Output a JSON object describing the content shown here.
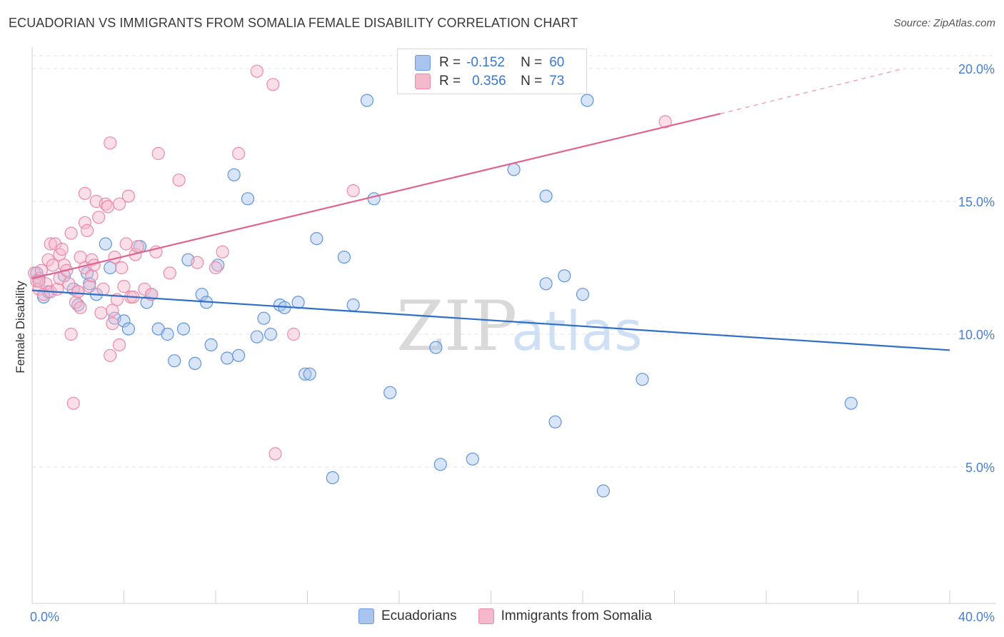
{
  "header": {
    "title": "ECUADORIAN VS IMMIGRANTS FROM SOMALIA FEMALE DISABILITY CORRELATION CHART",
    "source": "Source: ZipAtlas.com"
  },
  "watermark": {
    "zip": "ZIP",
    "atlas": "atlas"
  },
  "legend": {
    "r_label": "R =",
    "n_label": "N =",
    "series": [
      {
        "r": "-0.152",
        "n": "60",
        "color": "#a9c4ee"
      },
      {
        "r": "0.356",
        "n": "73",
        "color": "#f6b8cb"
      }
    ]
  },
  "bottom_legend": [
    {
      "label": "Ecuadorians",
      "color": "#a9c4ee"
    },
    {
      "label": "Immigrants from Somalia",
      "color": "#f6b8cb"
    }
  ],
  "chart_data": {
    "type": "scatter",
    "title": "ECUADORIAN VS IMMIGRANTS FROM SOMALIA FEMALE DISABILITY CORRELATION CHART",
    "xlabel": "",
    "ylabel": "Female Disability",
    "xlim": [
      0,
      40
    ],
    "ylim": [
      0,
      20.5
    ],
    "x_tick_labels": [
      {
        "value": 0,
        "label": "0.0%"
      },
      {
        "value": 40,
        "label": "40.0%"
      }
    ],
    "y_tick_labels": [
      {
        "value": 5,
        "label": "5.0%"
      },
      {
        "value": 10,
        "label": "10.0%"
      },
      {
        "value": 15,
        "label": "15.0%"
      },
      {
        "value": 20,
        "label": "20.0%"
      }
    ],
    "grid": true,
    "series": [
      {
        "name": "Ecuadorians",
        "stroke": "#5f95dc",
        "fill": "#a9c4ee",
        "trend": {
          "x": [
            0,
            40
          ],
          "y": [
            11.65,
            9.4
          ],
          "color": "#2f6fc7"
        },
        "points": [
          {
            "x": 0.3,
            "y": 12.1
          },
          {
            "x": 0.5,
            "y": 11.4
          },
          {
            "x": 0.7,
            "y": 11.6
          },
          {
            "x": 1.4,
            "y": 12.2
          },
          {
            "x": 1.8,
            "y": 11.7
          },
          {
            "x": 2.0,
            "y": 11.1
          },
          {
            "x": 2.4,
            "y": 12.3
          },
          {
            "x": 2.5,
            "y": 11.9
          },
          {
            "x": 2.8,
            "y": 11.5
          },
          {
            "x": 3.2,
            "y": 13.4
          },
          {
            "x": 3.4,
            "y": 12.5
          },
          {
            "x": 3.6,
            "y": 10.6
          },
          {
            "x": 4.0,
            "y": 10.5
          },
          {
            "x": 4.2,
            "y": 10.2
          },
          {
            "x": 4.7,
            "y": 13.3
          },
          {
            "x": 5.0,
            "y": 11.2
          },
          {
            "x": 5.2,
            "y": 11.5
          },
          {
            "x": 5.5,
            "y": 10.2
          },
          {
            "x": 5.9,
            "y": 10.0
          },
          {
            "x": 6.2,
            "y": 9.0
          },
          {
            "x": 6.6,
            "y": 10.2
          },
          {
            "x": 6.8,
            "y": 12.8
          },
          {
            "x": 7.1,
            "y": 8.9
          },
          {
            "x": 7.4,
            "y": 11.5
          },
          {
            "x": 7.6,
            "y": 11.2
          },
          {
            "x": 7.8,
            "y": 9.6
          },
          {
            "x": 8.1,
            "y": 12.6
          },
          {
            "x": 8.5,
            "y": 9.1
          },
          {
            "x": 8.8,
            "y": 16.0
          },
          {
            "x": 9.0,
            "y": 9.2
          },
          {
            "x": 9.4,
            "y": 15.1
          },
          {
            "x": 9.8,
            "y": 9.9
          },
          {
            "x": 10.1,
            "y": 10.6
          },
          {
            "x": 10.4,
            "y": 10.0
          },
          {
            "x": 10.8,
            "y": 11.1
          },
          {
            "x": 11.0,
            "y": 11.0
          },
          {
            "x": 11.6,
            "y": 11.2
          },
          {
            "x": 11.9,
            "y": 8.5
          },
          {
            "x": 12.1,
            "y": 8.5
          },
          {
            "x": 12.4,
            "y": 13.6
          },
          {
            "x": 13.1,
            "y": 4.6
          },
          {
            "x": 13.6,
            "y": 12.9
          },
          {
            "x": 14.0,
            "y": 11.1
          },
          {
            "x": 14.6,
            "y": 18.8
          },
          {
            "x": 14.9,
            "y": 15.1
          },
          {
            "x": 15.6,
            "y": 7.8
          },
          {
            "x": 17.6,
            "y": 9.5
          },
          {
            "x": 17.8,
            "y": 5.1
          },
          {
            "x": 19.2,
            "y": 5.3
          },
          {
            "x": 21.0,
            "y": 16.2
          },
          {
            "x": 22.4,
            "y": 11.9
          },
          {
            "x": 22.4,
            "y": 15.2
          },
          {
            "x": 22.8,
            "y": 6.7
          },
          {
            "x": 23.2,
            "y": 12.2
          },
          {
            "x": 24.0,
            "y": 11.5
          },
          {
            "x": 24.2,
            "y": 18.8
          },
          {
            "x": 24.9,
            "y": 4.1
          },
          {
            "x": 26.6,
            "y": 8.3
          },
          {
            "x": 35.7,
            "y": 7.4
          },
          {
            "x": 0.2,
            "y": 12.3
          }
        ]
      },
      {
        "name": "Immigrants from Somalia",
        "stroke": "#ea8aa8",
        "fill": "#f6b8cb",
        "trend": {
          "x": [
            0,
            30
          ],
          "y": [
            12.1,
            18.3
          ],
          "color": "#e0648e",
          "dashed_extension": {
            "x": [
              30,
              38
            ],
            "y": [
              18.3,
              20.0
            ]
          }
        },
        "points": [
          {
            "x": 0.1,
            "y": 12.3
          },
          {
            "x": 0.2,
            "y": 12.0
          },
          {
            "x": 0.3,
            "y": 11.7
          },
          {
            "x": 0.4,
            "y": 12.4
          },
          {
            "x": 0.5,
            "y": 11.5
          },
          {
            "x": 0.6,
            "y": 11.9
          },
          {
            "x": 0.7,
            "y": 12.8
          },
          {
            "x": 0.8,
            "y": 11.6
          },
          {
            "x": 0.8,
            "y": 13.4
          },
          {
            "x": 0.9,
            "y": 12.6
          },
          {
            "x": 1.0,
            "y": 13.4
          },
          {
            "x": 1.1,
            "y": 11.7
          },
          {
            "x": 1.2,
            "y": 13.0
          },
          {
            "x": 1.2,
            "y": 12.1
          },
          {
            "x": 1.3,
            "y": 13.2
          },
          {
            "x": 1.4,
            "y": 12.6
          },
          {
            "x": 1.5,
            "y": 12.4
          },
          {
            "x": 1.6,
            "y": 11.9
          },
          {
            "x": 1.7,
            "y": 10.0
          },
          {
            "x": 1.7,
            "y": 13.8
          },
          {
            "x": 1.8,
            "y": 7.4
          },
          {
            "x": 1.9,
            "y": 11.2
          },
          {
            "x": 2.0,
            "y": 11.6
          },
          {
            "x": 2.1,
            "y": 11.0
          },
          {
            "x": 2.1,
            "y": 12.9
          },
          {
            "x": 2.3,
            "y": 12.5
          },
          {
            "x": 2.3,
            "y": 14.2
          },
          {
            "x": 2.3,
            "y": 15.3
          },
          {
            "x": 2.4,
            "y": 13.9
          },
          {
            "x": 2.5,
            "y": 11.8
          },
          {
            "x": 2.6,
            "y": 12.2
          },
          {
            "x": 2.6,
            "y": 12.8
          },
          {
            "x": 2.7,
            "y": 12.6
          },
          {
            "x": 2.8,
            "y": 15.0
          },
          {
            "x": 2.9,
            "y": 14.4
          },
          {
            "x": 3.0,
            "y": 10.8
          },
          {
            "x": 3.1,
            "y": 11.7
          },
          {
            "x": 3.2,
            "y": 14.9
          },
          {
            "x": 3.3,
            "y": 14.8
          },
          {
            "x": 3.4,
            "y": 9.2
          },
          {
            "x": 3.4,
            "y": 17.2
          },
          {
            "x": 3.5,
            "y": 10.4
          },
          {
            "x": 3.5,
            "y": 10.9
          },
          {
            "x": 3.6,
            "y": 12.9
          },
          {
            "x": 3.7,
            "y": 11.3
          },
          {
            "x": 3.8,
            "y": 14.9
          },
          {
            "x": 3.8,
            "y": 9.6
          },
          {
            "x": 3.9,
            "y": 12.5
          },
          {
            "x": 4.0,
            "y": 11.8
          },
          {
            "x": 4.1,
            "y": 13.4
          },
          {
            "x": 4.2,
            "y": 15.2
          },
          {
            "x": 4.3,
            "y": 11.4
          },
          {
            "x": 4.4,
            "y": 11.4
          },
          {
            "x": 4.5,
            "y": 13.0
          },
          {
            "x": 4.6,
            "y": 13.3
          },
          {
            "x": 4.9,
            "y": 11.7
          },
          {
            "x": 5.2,
            "y": 11.5
          },
          {
            "x": 5.4,
            "y": 13.1
          },
          {
            "x": 5.5,
            "y": 16.8
          },
          {
            "x": 6.0,
            "y": 12.3
          },
          {
            "x": 6.4,
            "y": 15.8
          },
          {
            "x": 7.2,
            "y": 12.7
          },
          {
            "x": 8.0,
            "y": 12.5
          },
          {
            "x": 8.3,
            "y": 13.1
          },
          {
            "x": 9.0,
            "y": 16.8
          },
          {
            "x": 9.8,
            "y": 19.9
          },
          {
            "x": 10.5,
            "y": 19.4
          },
          {
            "x": 10.6,
            "y": 5.5
          },
          {
            "x": 11.4,
            "y": 10.0
          },
          {
            "x": 14.0,
            "y": 15.4
          },
          {
            "x": 27.6,
            "y": 18.0
          },
          {
            "x": 2.0,
            "y": 11.6
          },
          {
            "x": 0.3,
            "y": 12.0
          }
        ]
      }
    ]
  }
}
